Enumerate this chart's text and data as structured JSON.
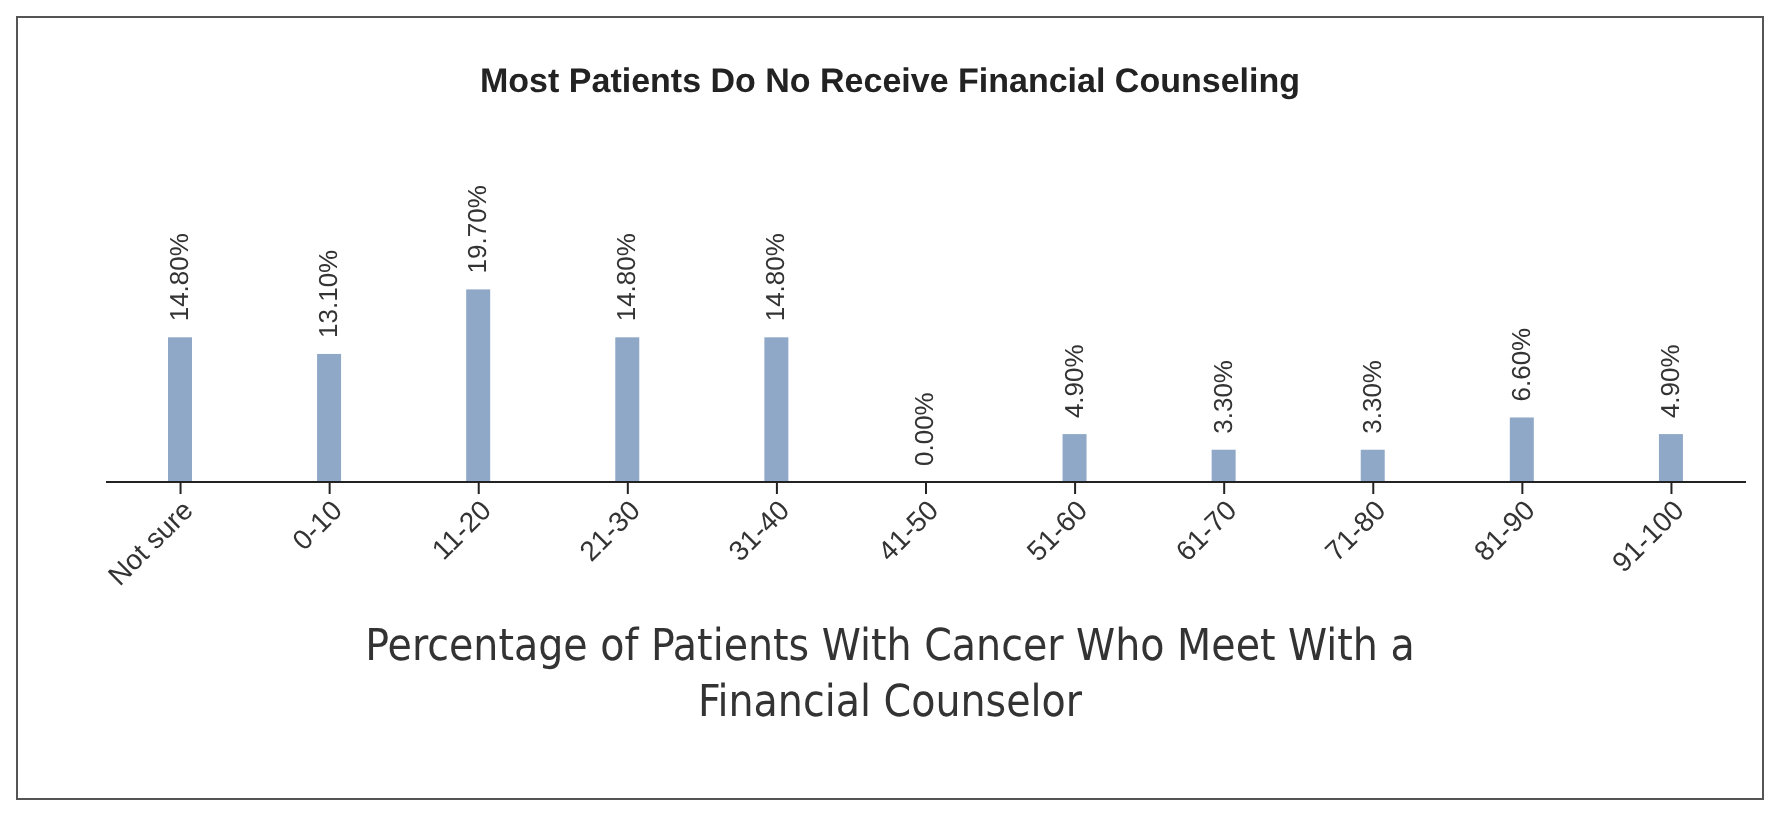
{
  "chart_data": {
    "type": "bar",
    "title": "Most Patients Do No Receive Financial Counseling",
    "xlabel": "Percentage of Patients With Cancer Who Meet With a Financial Counselor",
    "categories": [
      "Not sure",
      "0-10",
      "11-20",
      "21-30",
      "31-40",
      "41-50",
      "51-60",
      "61-70",
      "71-80",
      "81-90",
      "91-100"
    ],
    "values": [
      14.8,
      13.1,
      19.7,
      14.8,
      14.8,
      0,
      4.9,
      3.3,
      3.3,
      6.6,
      4.9
    ],
    "value_labels": [
      "14.80%",
      "13.10%",
      "19.70%",
      "14.80%",
      "14.80%",
      "0.00%",
      "4.90%",
      "3.30%",
      "3.30%",
      "6.60%",
      "4.90%"
    ],
    "color": "#8fa8c8",
    "grid": false,
    "legend": false
  }
}
